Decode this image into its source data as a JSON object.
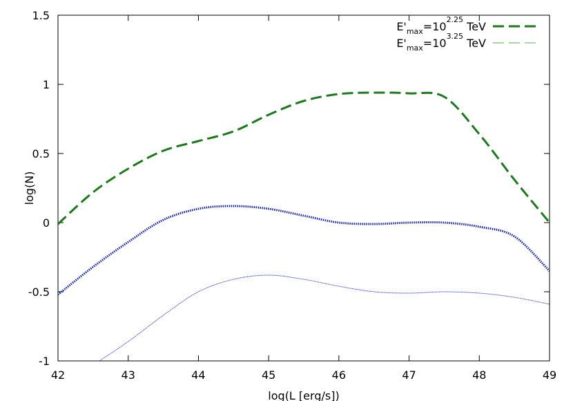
{
  "chart_data": {
    "type": "line",
    "xlabel": "log(L [erg/s])",
    "ylabel": "log(N)",
    "xlim": [
      42,
      49
    ],
    "ylim": [
      -1,
      1.5
    ],
    "x_ticks": [
      "42",
      "43",
      "44",
      "45",
      "46",
      "47",
      "48",
      "49"
    ],
    "y_ticks": [
      "-1",
      "-0.5",
      "0",
      "0.5",
      "1",
      "1.5"
    ],
    "grid": false,
    "legend_position": "top-right",
    "legend": [
      {
        "prefix": "E'",
        "subscript": "max",
        "mid": "=10",
        "superscript": "2.25",
        "suffix": " TeV",
        "color": "#1a7a1a",
        "style": "dashed-thick"
      },
      {
        "prefix": "E'",
        "subscript": "max",
        "mid": "=10",
        "superscript": "3.25",
        "suffix": " TeV",
        "color": "#6fbf6f",
        "style": "dashed-thin"
      }
    ],
    "series": [
      {
        "color": "#1a7a1a",
        "style": "dashed-thick",
        "x": [
          42,
          42.5,
          43,
          43.5,
          44,
          44.5,
          45,
          45.5,
          46,
          46.5,
          47,
          47.5,
          48,
          48.5,
          49
        ],
        "y": [
          -0.01,
          0.22,
          0.39,
          0.52,
          0.59,
          0.66,
          0.78,
          0.88,
          0.93,
          0.94,
          0.935,
          0.91,
          0.64,
          0.31,
          0.0
        ]
      },
      {
        "color": "#0a1ad0",
        "style": "dotted-thick",
        "x": [
          42,
          42.5,
          43,
          43.5,
          44,
          44.5,
          45,
          45.5,
          46,
          46.5,
          47,
          47.5,
          48,
          48.5,
          49
        ],
        "y": [
          -0.52,
          -0.32,
          -0.14,
          0.02,
          0.1,
          0.12,
          0.1,
          0.05,
          0.0,
          -0.01,
          0.0,
          0.0,
          -0.03,
          -0.1,
          -0.35
        ]
      },
      {
        "color": "#0a1ad0",
        "style": "dotted-thin",
        "x": [
          42.5,
          43,
          43.5,
          44,
          44.5,
          45,
          45.5,
          46,
          46.5,
          47,
          47.5,
          48,
          48.5,
          49
        ],
        "y": [
          -1.03,
          -0.86,
          -0.67,
          -0.5,
          -0.41,
          -0.38,
          -0.41,
          -0.46,
          -0.5,
          -0.51,
          -0.5,
          -0.51,
          -0.54,
          -0.59
        ]
      }
    ]
  }
}
